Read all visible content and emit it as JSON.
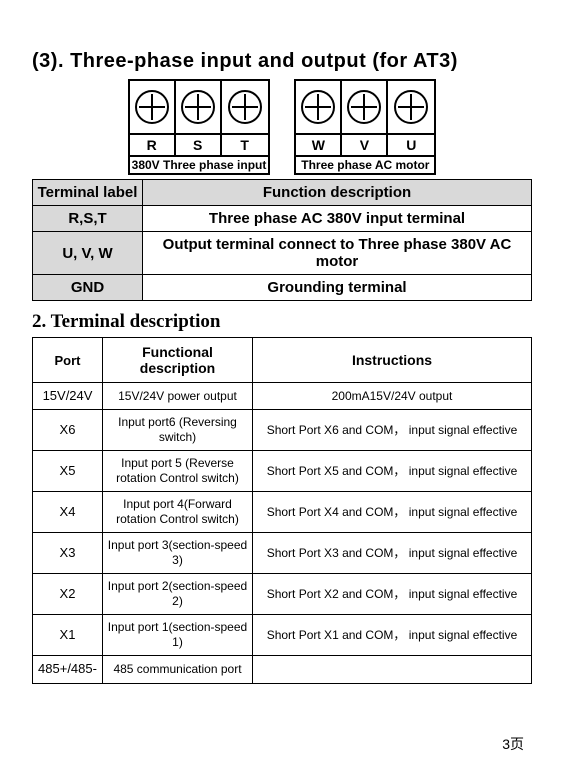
{
  "section": {
    "number": "(3).",
    "title": "Three-phase input and output (for AT3)"
  },
  "diagram": {
    "left": {
      "labels": [
        "R",
        "S",
        "T"
      ],
      "caption": "380V Three phase input"
    },
    "right": {
      "labels": [
        "W",
        "V",
        "U"
      ],
      "caption": "Three phase AC motor"
    }
  },
  "func_table": {
    "headers": [
      "Terminal label",
      "Function description"
    ],
    "rows": [
      {
        "label": "R,S,T",
        "desc": "Three phase AC 380V input terminal"
      },
      {
        "label": "U, V, W",
        "desc": "Output terminal connect to Three phase 380V AC motor"
      },
      {
        "label": "GND",
        "desc": "Grounding terminal"
      }
    ]
  },
  "sub_title": "2. Terminal description",
  "port_table": {
    "headers": [
      "Port",
      "Functional description",
      "Instructions"
    ],
    "rows": [
      {
        "port": "15V/24V",
        "func": "15V/24V power output",
        "instr": "200mA15V/24V output"
      },
      {
        "port": "X6",
        "func": "Input port6 (Reversing  switch)",
        "instr": "Short Port X6 and COM， input signal effective"
      },
      {
        "port": "X5",
        "func": "Input port 5 (Reverse rotation Control switch)",
        "instr": "Short Port X5 and COM， input signal effective"
      },
      {
        "port": "X4",
        "func": "Input port 4(Forward rotation Control switch)",
        "instr": "Short Port X4 and COM， input signal effective"
      },
      {
        "port": "X3",
        "func": "Input port 3(section-speed 3)",
        "instr": "Short Port X3 and COM， input signal effective"
      },
      {
        "port": "X2",
        "func": "Input port 2(section-speed 2)",
        "instr": "Short Port X2 and COM， input signal effective"
      },
      {
        "port": "X1",
        "func": "Input port 1(section-speed 1)",
        "instr": "Short Port X1 and COM， input signal effective"
      },
      {
        "port": "485+/485-",
        "func": "485 communication port",
        "instr": ""
      }
    ]
  },
  "page_number": "3页"
}
